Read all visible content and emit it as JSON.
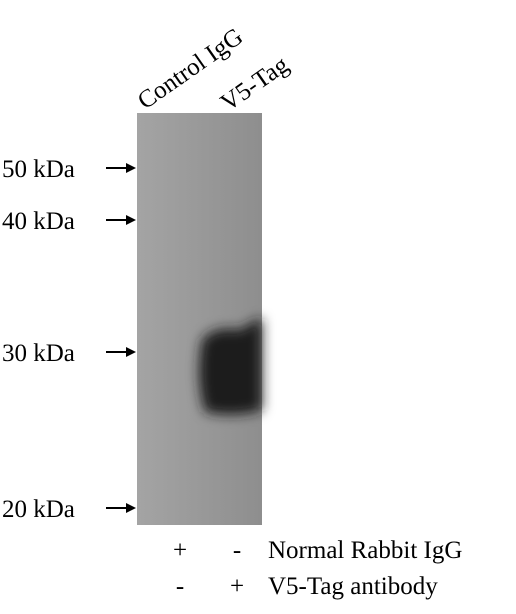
{
  "lanes": [
    "Control IgG",
    "V5-Tag"
  ],
  "markers": [
    "50 kDa",
    "40 kDa",
    "30 kDa",
    "20 kDa"
  ],
  "conditions": [
    {
      "label": "Normal Rabbit IgG",
      "signs": [
        "+",
        "-"
      ]
    },
    {
      "label": "V5-Tag antibody",
      "signs": [
        "-",
        "+"
      ]
    }
  ]
}
